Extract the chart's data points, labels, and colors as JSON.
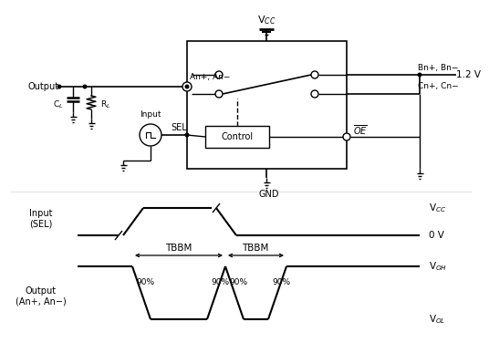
{
  "fig_bg": "#ffffff",
  "circuit": {
    "vcc_label": "V$_{CC}$",
    "gnd_label": "GND",
    "oe_label": "$\\overline{OE}$",
    "sel_label": "SEL",
    "control_label": "Control",
    "output_label": "Output",
    "input_label": "Input",
    "an_label": "An+, An−",
    "bn_label": "Bn+, Bn−",
    "cn_label": "Cn+, Cn−",
    "voltage_label": "1.2 V",
    "cl_label": "C$_L$",
    "rl_label": "R$_L$"
  },
  "waveform": {
    "input_label": "Input\n(SEL)",
    "output_label": "Output\n(An+, An−)",
    "vcc_label": "V$_{CC}$",
    "ov_label": "0 V",
    "voh_label": "V$_{OH}$",
    "vol_label": "V$_{OL}$",
    "tbbm_label": "TBBM",
    "pct_label": "90%"
  }
}
